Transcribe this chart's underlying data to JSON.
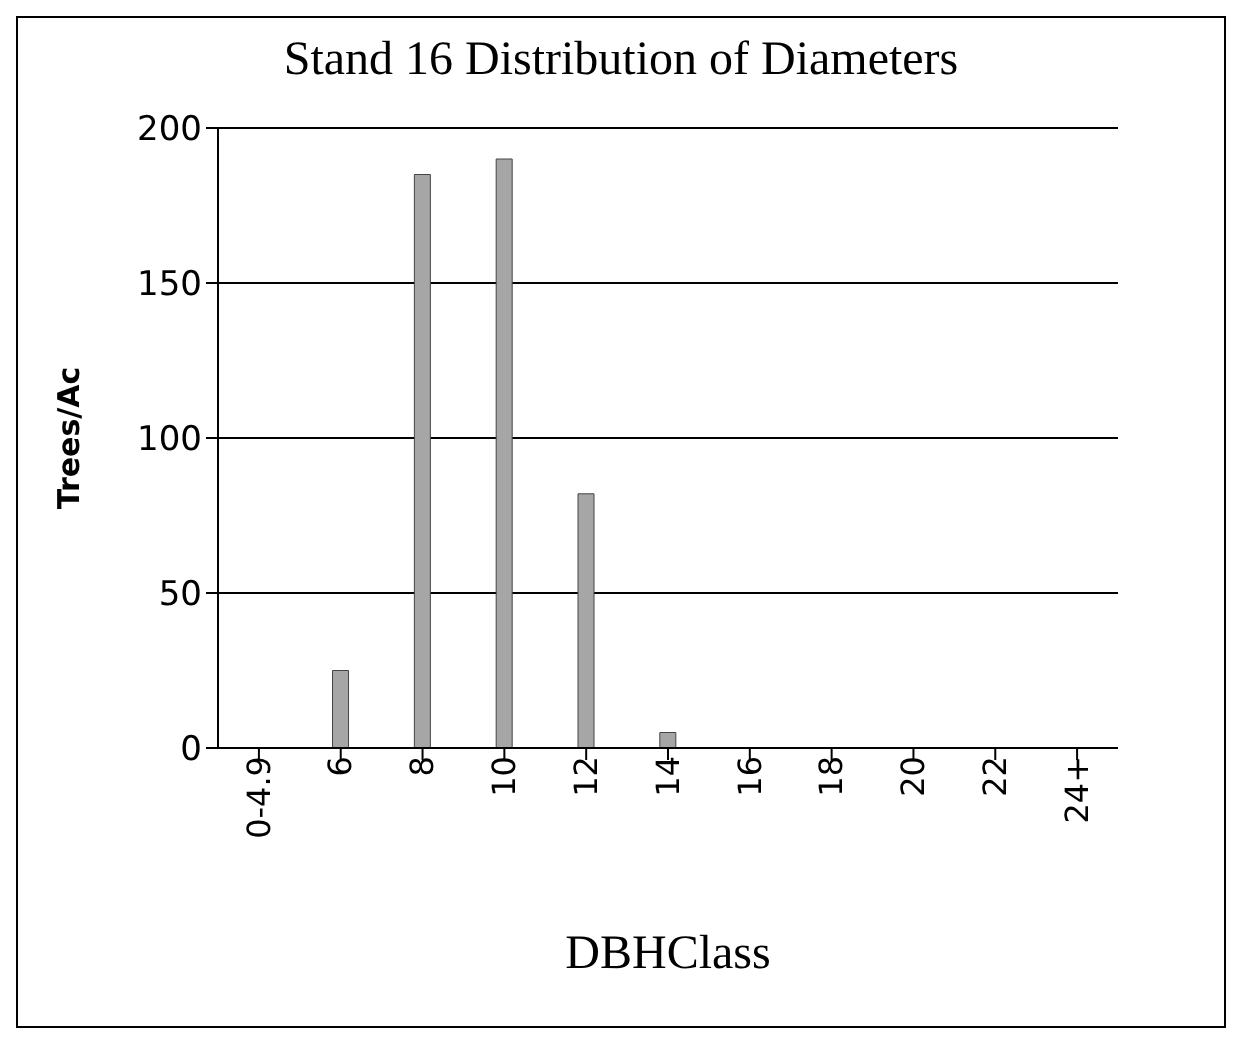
{
  "chart_data": {
    "type": "bar",
    "title": "Stand 16 Distribution of Diameters",
    "xlabel": "DBHClass",
    "ylabel": "Trees/Ac",
    "categories": [
      "0-4.9",
      "6",
      "8",
      "10",
      "12",
      "14",
      "16",
      "18",
      "20",
      "22",
      "24+"
    ],
    "values": [
      0,
      25,
      185,
      190,
      82,
      5,
      0,
      0,
      0,
      0,
      0
    ],
    "color": "#a6a6a6",
    "ylim": [
      0,
      200
    ],
    "yticks": [
      0,
      50,
      100,
      150,
      200
    ],
    "grid": "y"
  }
}
